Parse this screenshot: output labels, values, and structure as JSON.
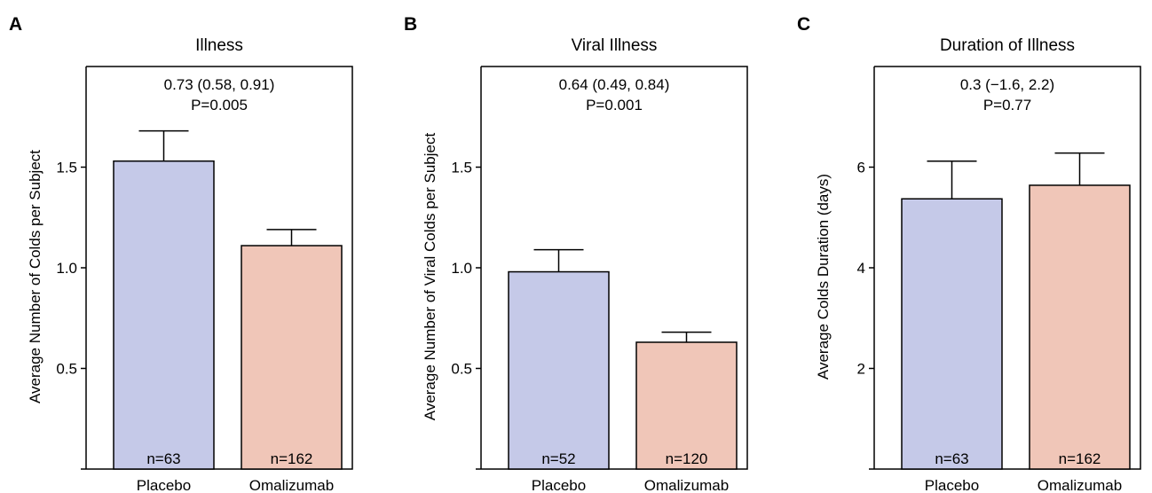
{
  "colors": {
    "placebo": "#c5c9e8",
    "omalizumab": "#f0c6b8"
  },
  "chart_data": [
    {
      "type": "bar",
      "panel": "A",
      "title": "Illness",
      "ylabel": "Average Number of Colds per Subject",
      "xlabel": "",
      "categories": [
        "Placebo",
        "Omalizumab"
      ],
      "values": [
        1.53,
        1.11
      ],
      "error_upper": [
        1.68,
        1.19
      ],
      "n_labels": [
        "n=63",
        "n=162"
      ],
      "annotation": [
        "0.73 (0.58, 0.91)",
        "P=0.005"
      ],
      "ylim": [
        0,
        2.0
      ],
      "yticks": [
        0.5,
        1.0,
        1.5
      ],
      "ytick_labels": [
        "0.5",
        "1.0",
        "1.5"
      ],
      "grid": false
    },
    {
      "type": "bar",
      "panel": "B",
      "title": "Viral Illness",
      "ylabel": "Average Number of Viral Colds per Subject",
      "xlabel": "",
      "categories": [
        "Placebo",
        "Omalizumab"
      ],
      "values": [
        0.98,
        0.63
      ],
      "error_upper": [
        1.09,
        0.68
      ],
      "n_labels": [
        "n=52",
        "n=120"
      ],
      "annotation": [
        "0.64 (0.49, 0.84)",
        "P=0.001"
      ],
      "ylim": [
        0,
        2.0
      ],
      "yticks": [
        0.5,
        1.0,
        1.5
      ],
      "ytick_labels": [
        "0.5",
        "1.0",
        "1.5"
      ],
      "grid": false
    },
    {
      "type": "bar",
      "panel": "C",
      "title": "Duration of Illness",
      "ylabel": "Average Colds Duration (days)",
      "xlabel": "",
      "categories": [
        "Placebo",
        "Omalizumab"
      ],
      "values": [
        5.37,
        5.64
      ],
      "error_upper": [
        6.12,
        6.28
      ],
      "n_labels": [
        "n=63",
        "n=162"
      ],
      "annotation": [
        "0.3 (−1.6, 2.2)",
        "P=0.77"
      ],
      "ylim": [
        0,
        8.0
      ],
      "yticks": [
        2,
        4,
        6
      ],
      "ytick_labels": [
        "2",
        "4",
        "6"
      ],
      "grid": false
    }
  ]
}
